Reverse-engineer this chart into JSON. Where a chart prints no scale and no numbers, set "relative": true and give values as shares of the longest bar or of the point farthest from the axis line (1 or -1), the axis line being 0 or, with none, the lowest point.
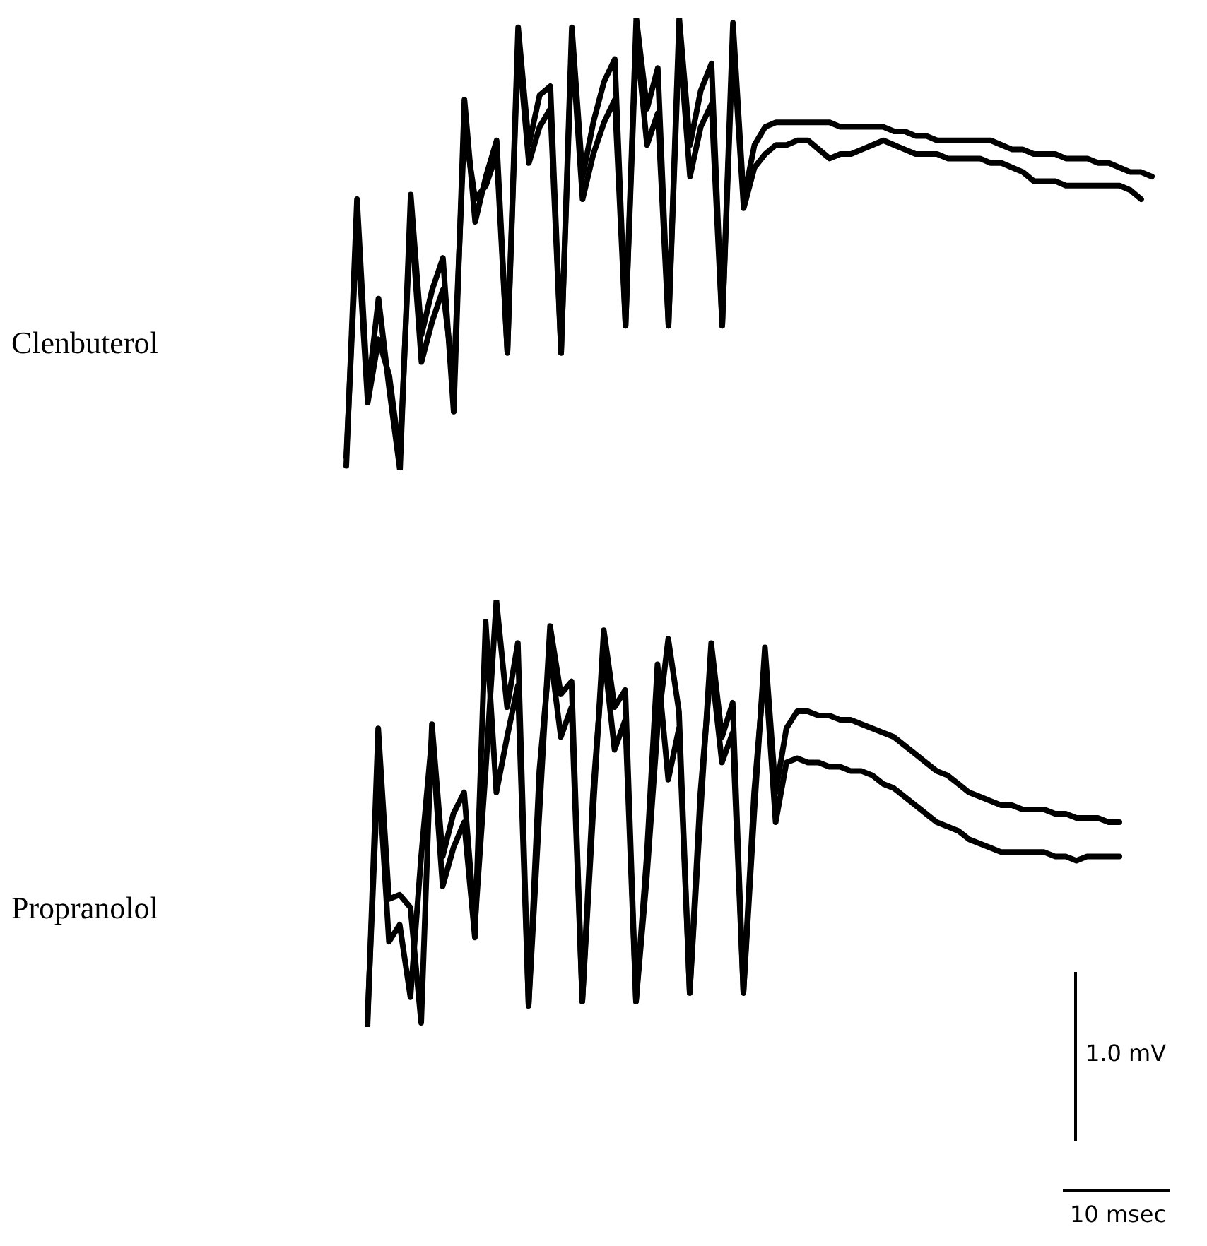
{
  "chart_data": [
    {
      "type": "line",
      "ylabel": "Clenbuterol",
      "relative": true,
      "tick_labels": false,
      "legend": false,
      "marker": "none",
      "line_style": "solid",
      "categories": [
        null,
        null,
        null,
        null,
        null,
        null,
        null,
        null,
        null,
        null,
        null,
        null,
        null,
        null,
        null,
        null,
        null,
        null,
        null,
        null,
        null,
        null,
        null,
        null,
        null,
        null,
        null,
        null,
        null,
        null,
        null,
        null,
        null,
        null,
        null,
        null,
        null,
        null,
        null,
        null,
        null,
        null,
        null,
        null,
        null,
        null,
        null,
        null,
        null,
        null,
        null,
        null,
        null,
        null,
        null,
        null,
        null,
        null,
        null,
        null,
        null,
        null,
        null,
        null,
        null,
        null,
        null,
        null,
        null,
        null,
        null,
        null,
        null,
        null,
        null,
        null
      ],
      "series": [
        {
          "color": "#000000",
          "values": [
            0.01,
            0.6,
            0.17,
            0.38,
            0.18,
            0.0,
            0.61,
            0.3,
            0.4,
            0.47,
            0.13,
            0.82,
            0.55,
            0.65,
            0.73,
            0.26,
            0.98,
            0.72,
            0.83,
            0.85,
            0.26,
            0.98,
            0.65,
            0.77,
            0.86,
            0.91,
            0.32,
            1.0,
            0.8,
            0.89,
            0.32,
            1.0,
            0.72,
            0.84,
            0.9,
            0.32,
            0.99,
            0.6,
            0.72,
            0.76,
            0.77,
            0.77,
            0.77,
            0.77,
            0.77,
            0.77,
            0.76,
            0.76,
            0.76,
            0.76,
            0.76,
            0.75,
            0.75,
            0.74,
            0.74,
            0.73,
            0.73,
            0.73,
            0.73,
            0.73,
            0.73,
            0.72,
            0.71,
            0.71,
            0.7,
            0.7,
            0.7,
            0.69,
            0.69,
            0.69,
            0.68,
            0.68,
            0.67,
            0.66,
            0.66,
            0.65
          ]
        },
        {
          "color": "#000000",
          "values": [
            0.03,
            0.54,
            0.15,
            0.29,
            0.21,
            0.03,
            0.57,
            0.24,
            0.33,
            0.4,
            0.2,
            0.76,
            0.6,
            0.63,
            0.7,
            0.26,
            0.95,
            0.68,
            0.76,
            0.8,
            0.26,
            0.95,
            0.6,
            0.7,
            0.77,
            0.82,
            0.32,
            0.96,
            0.72,
            0.79,
            0.32,
            0.96,
            0.65,
            0.76,
            0.81,
            0.32,
            0.95,
            0.58,
            0.67,
            0.7,
            0.72,
            0.72,
            0.73,
            0.73,
            0.71,
            0.69,
            0.7,
            0.7,
            0.71,
            0.72,
            0.73,
            0.72,
            0.71,
            0.7,
            0.7,
            0.7,
            0.69,
            0.69,
            0.69,
            0.69,
            0.68,
            0.68,
            0.67,
            0.66,
            0.64,
            0.64,
            0.64,
            0.63,
            0.63,
            0.63,
            0.63,
            0.63,
            0.63,
            0.62,
            0.6,
            null
          ]
        }
      ]
    },
    {
      "type": "line",
      "ylabel": "Propranolol",
      "relative": true,
      "tick_labels": false,
      "legend": false,
      "marker": "none",
      "line_style": "solid",
      "annotations": [
        "1.0 mV",
        "10 msec"
      ],
      "categories": [
        null,
        null,
        null,
        null,
        null,
        null,
        null,
        null,
        null,
        null,
        null,
        null,
        null,
        null,
        null,
        null,
        null,
        null,
        null,
        null,
        null,
        null,
        null,
        null,
        null,
        null,
        null,
        null,
        null,
        null,
        null,
        null,
        null,
        null,
        null,
        null,
        null,
        null,
        null,
        null,
        null,
        null,
        null,
        null,
        null,
        null,
        null,
        null,
        null,
        null,
        null,
        null,
        null,
        null,
        null,
        null,
        null,
        null,
        null,
        null,
        null,
        null,
        null,
        null,
        null,
        null,
        null,
        null,
        null,
        null,
        null
      ],
      "series": [
        {
          "color": "#000000",
          "values": [
            0.0,
            0.7,
            0.3,
            0.31,
            0.28,
            0.01,
            0.71,
            0.4,
            0.5,
            0.55,
            0.24,
            0.6,
            1.0,
            0.75,
            0.9,
            0.05,
            0.5,
            0.94,
            0.78,
            0.81,
            0.06,
            0.5,
            0.93,
            0.75,
            0.79,
            0.06,
            0.35,
            0.7,
            0.91,
            0.74,
            0.08,
            0.5,
            0.9,
            0.68,
            0.76,
            0.08,
            0.5,
            0.89,
            0.55,
            0.7,
            0.74,
            0.74,
            0.73,
            0.73,
            0.72,
            0.72,
            0.71,
            0.7,
            0.69,
            0.68,
            0.66,
            0.64,
            0.62,
            0.6,
            0.59,
            0.57,
            0.55,
            0.54,
            0.53,
            0.52,
            0.52,
            0.51,
            0.51,
            0.51,
            0.5,
            0.5,
            0.49,
            0.49,
            0.49,
            0.48,
            0.48
          ]
        },
        {
          "color": "#000000",
          "values": [
            0.02,
            0.61,
            0.2,
            0.24,
            0.07,
            0.4,
            0.68,
            0.33,
            0.42,
            0.48,
            0.21,
            0.95,
            0.55,
            0.68,
            0.8,
            0.05,
            0.6,
            0.88,
            0.68,
            0.75,
            0.06,
            0.55,
            0.88,
            0.65,
            0.72,
            0.06,
            0.4,
            0.85,
            0.58,
            0.7,
            0.08,
            0.55,
            0.85,
            0.62,
            0.69,
            0.08,
            0.55,
            0.85,
            0.48,
            0.62,
            0.63,
            0.62,
            0.62,
            0.61,
            0.61,
            0.6,
            0.6,
            0.59,
            0.57,
            0.56,
            0.54,
            0.52,
            0.5,
            0.48,
            0.47,
            0.46,
            0.44,
            0.43,
            0.42,
            0.41,
            0.41,
            0.41,
            0.41,
            0.41,
            0.4,
            0.4,
            0.39,
            0.4,
            0.4,
            0.4,
            0.4
          ]
        }
      ]
    }
  ]
}
